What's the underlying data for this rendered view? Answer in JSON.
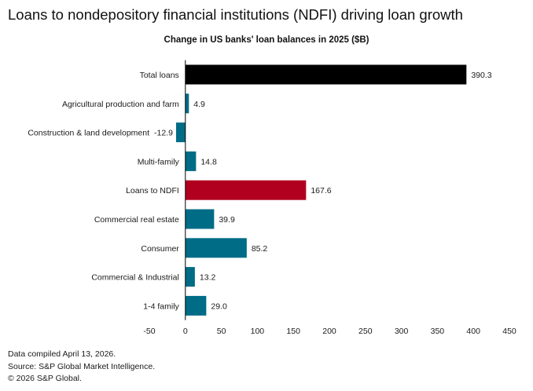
{
  "title": "Loans to nondepository financial institutions (NDFI) driving loan growth",
  "chart_data": {
    "type": "bar",
    "orientation": "horizontal",
    "title": "Change in US banks' loan balances in 2025  ($B)",
    "categories": [
      "Total loans",
      "Agricultural production and farm",
      "Construction & land development",
      "Multi-family",
      "Loans to NDFI",
      "Commercial real estate",
      "Consumer",
      "Commercial & Industrial",
      "1-4 family"
    ],
    "values": [
      390.3,
      4.9,
      -12.9,
      14.8,
      167.6,
      39.9,
      85.2,
      13.2,
      29.0
    ],
    "value_labels": [
      "390.3",
      "4.9",
      "-12.9",
      "14.8",
      "167.6",
      "39.9",
      "85.2",
      "13.2",
      "29.0"
    ],
    "bar_colors": [
      "#000000",
      "#006c86",
      "#006c86",
      "#006c86",
      "#b1001f",
      "#006c86",
      "#006c86",
      "#006c86",
      "#006c86"
    ],
    "xlim": [
      -50,
      450
    ],
    "xticks": [
      -50,
      0,
      50,
      100,
      150,
      200,
      250,
      300,
      350,
      400,
      450
    ],
    "grid": false
  },
  "footer": {
    "line1": "Data compiled April 13, 2026.",
    "line2": "Source: S&P Global Market Intelligence.",
    "line3": "© 2026 S&P Global."
  }
}
